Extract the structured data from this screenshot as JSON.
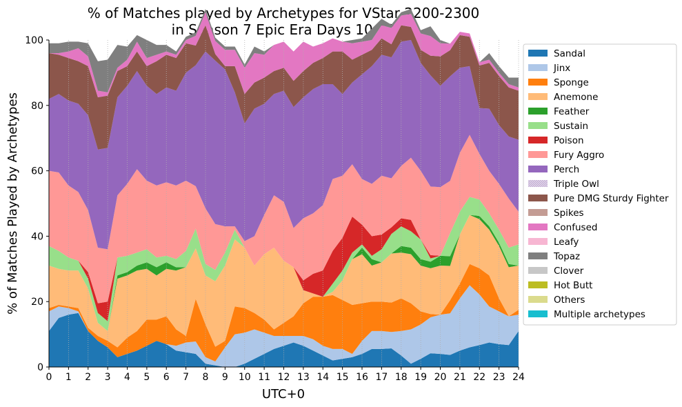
{
  "chart_data": {
    "type": "area",
    "stacked": true,
    "title_lines": [
      "% of Matches played by Archetypes for VStar 2200-2300",
      "in Season 7 Epic Era Days 10-12"
    ],
    "xlabel": "UTC+0",
    "ylabel": "% of Matches Played by Archetypes",
    "xlim": [
      0,
      24
    ],
    "ylim": [
      0,
      100
    ],
    "x_ticks": [
      "0",
      "1",
      "2",
      "3",
      "4",
      "5",
      "6",
      "7",
      "8",
      "9",
      "10",
      "11",
      "12",
      "13",
      "14",
      "15",
      "16",
      "17",
      "18",
      "19",
      "20",
      "21",
      "22",
      "23",
      "24"
    ],
    "y_ticks": [
      "0",
      "20",
      "40",
      "60",
      "80",
      "100"
    ],
    "grid": "vertical dotted",
    "legend_position": "outside right",
    "x": [
      0,
      0.5,
      1,
      1.5,
      2,
      2.5,
      3,
      3.5,
      4,
      4.5,
      5,
      5.5,
      6,
      6.5,
      7,
      7.5,
      8,
      8.5,
      9,
      9.5,
      10,
      10.5,
      11,
      11.5,
      12,
      12.5,
      13,
      13.5,
      14,
      14.5,
      15,
      15.5,
      16,
      16.5,
      17,
      17.5,
      18,
      18.5,
      19,
      19.5,
      20,
      20.5,
      21,
      21.5,
      22,
      22.5,
      23,
      23.5,
      24
    ],
    "series": [
      {
        "name": "Sandal",
        "color": "#1f77b4",
        "values": [
          11,
          15,
          16,
          16.5,
          11,
          8,
          6,
          3,
          4,
          5,
          6.5,
          8,
          7,
          5,
          4.5,
          4,
          1,
          0.5,
          0,
          0,
          1,
          2.5,
          4,
          5.5,
          6.5,
          7.5,
          6.5,
          5,
          3.5,
          2,
          2.5,
          3,
          4,
          5.5,
          5.5,
          5.7,
          3.5,
          1,
          2.5,
          4.2,
          4,
          3.7,
          5,
          6,
          6.7,
          7.5,
          7,
          6.7,
          11
        ]
      },
      {
        "name": "Jinx",
        "color": "#aec7e8",
        "values": [
          6,
          3.5,
          2,
          0.5,
          0,
          0,
          0,
          0,
          0,
          0,
          0,
          0,
          0,
          1.5,
          3,
          3.8,
          2,
          1.2,
          6,
          10,
          9.5,
          9,
          6.5,
          4,
          3,
          2,
          3,
          3.5,
          3,
          3.5,
          3,
          1,
          4,
          5.5,
          5.5,
          5,
          7.5,
          10.5,
          10.5,
          11,
          12,
          12.7,
          16,
          19,
          15.5,
          11,
          10,
          8.8,
          5
        ]
      },
      {
        "name": "Sponge",
        "color": "#ff7f0e",
        "values": [
          1,
          0.5,
          0.5,
          1,
          1,
          1.5,
          2,
          3,
          5,
          6,
          8,
          6.5,
          8.5,
          5,
          2,
          13,
          10,
          4.5,
          2,
          8.5,
          7.5,
          5,
          4,
          2,
          4,
          6,
          10,
          13,
          15,
          16.5,
          15,
          15,
          11.5,
          9,
          9,
          9,
          10,
          8,
          4,
          1,
          0,
          4,
          4.5,
          6.5,
          8,
          9.5,
          4,
          0,
          1.5
        ]
      },
      {
        "name": "Anemone",
        "color": "#ffbb78",
        "values": [
          13,
          11,
          11,
          11.5,
          12,
          4,
          3,
          21,
          19,
          18.5,
          15.5,
          13.5,
          14.5,
          18,
          21,
          15.5,
          15,
          20,
          23,
          20.5,
          18.5,
          14.5,
          20,
          25,
          19,
          15,
          4,
          1,
          0,
          1,
          6,
          14,
          15,
          11,
          12,
          15,
          14,
          15,
          14,
          14,
          15,
          10.5,
          15,
          15,
          15,
          14,
          16,
          15,
          13.5
        ]
      },
      {
        "name": "Feather",
        "color": "#2ca02c",
        "values": [
          0,
          0,
          0,
          0,
          0,
          0,
          0,
          1,
          1,
          1.5,
          2,
          2.5,
          2,
          1,
          0,
          0,
          0,
          0,
          0,
          0,
          0,
          0,
          0,
          0,
          0,
          0,
          0,
          0,
          0,
          0,
          0,
          0,
          2,
          2,
          0,
          0,
          2,
          2,
          2,
          2,
          3,
          3,
          0,
          0,
          1,
          1,
          1,
          1,
          0
        ]
      },
      {
        "name": "Sustain",
        "color": "#98df8a",
        "values": [
          6,
          5.5,
          4,
          3,
          3,
          3,
          3,
          5.5,
          5,
          4,
          4,
          3,
          2,
          2.5,
          5,
          6,
          3.5,
          3.5,
          4,
          3,
          0,
          0,
          0,
          0,
          0,
          0,
          0,
          0,
          0,
          2.5,
          3,
          2,
          1,
          1,
          4,
          6,
          6,
          5,
          6,
          1,
          0,
          7,
          7,
          5.5,
          5,
          4,
          4,
          5,
          6.5
        ]
      },
      {
        "name": "Poison",
        "color": "#d62728",
        "values": [
          0,
          0,
          0,
          0,
          2,
          3,
          6,
          0,
          0,
          0,
          0,
          0,
          0,
          0,
          0,
          0,
          0,
          0,
          0,
          0,
          0,
          0,
          0,
          0,
          0,
          0,
          3,
          6,
          8,
          10,
          10,
          11,
          6,
          6,
          4.5,
          2,
          2.5,
          3.5,
          0,
          1,
          0,
          0,
          0,
          0,
          0,
          0,
          0,
          0,
          0
        ]
      },
      {
        "name": "Fury Aggro",
        "color": "#ff9896",
        "values": [
          23,
          24,
          22,
          21,
          19,
          17,
          16,
          19,
          22,
          25.5,
          21,
          22,
          22.5,
          22.5,
          21.5,
          13,
          17,
          14,
          8,
          1,
          2,
          9,
          12,
          16,
          18,
          12,
          19,
          18.5,
          20,
          22,
          19,
          16,
          14,
          16,
          18,
          15,
          16,
          19,
          21,
          21,
          21,
          16,
          18,
          19,
          14,
          13,
          14,
          15,
          10
        ]
      },
      {
        "name": "Perch",
        "color": "#9467bd",
        "values": [
          22,
          24,
          26,
          27,
          29,
          30,
          31,
          30,
          30,
          30,
          29,
          28,
          29,
          29,
          33,
          37,
          48,
          50,
          48,
          41,
          36,
          39,
          34,
          31,
          34,
          37,
          37,
          38,
          37,
          29,
          25,
          25,
          32,
          36,
          37,
          37,
          38,
          36,
          33,
          34,
          31,
          32,
          26,
          21,
          14,
          19,
          18,
          19,
          22
        ]
      },
      {
        "name": "Triple Owl",
        "color": "#c5b0d5",
        "pattern": true,
        "values": [
          0,
          0,
          0,
          0,
          0,
          0,
          0,
          0,
          0,
          0,
          0,
          0,
          0,
          0,
          0,
          0,
          0,
          0,
          0,
          0,
          0,
          0,
          0,
          0,
          0,
          0,
          0,
          0,
          0,
          0,
          0,
          0,
          0,
          0,
          0,
          0,
          0,
          0,
          0,
          0,
          0,
          0,
          0,
          0,
          0,
          0,
          0,
          0,
          0
        ]
      },
      {
        "name": "Pure DMG Sturdy Fighter",
        "color": "#8c564b",
        "values": [
          14,
          12,
          13,
          13,
          15,
          16,
          16,
          8,
          6,
          6,
          6,
          10,
          10,
          10,
          9,
          6,
          8,
          2,
          1,
          8,
          9,
          8,
          8,
          7,
          7,
          8,
          8,
          8,
          8,
          10,
          13,
          7,
          6,
          5,
          5,
          4,
          5,
          4,
          4,
          6,
          9,
          8,
          10,
          9,
          13,
          14,
          15,
          15,
          15
        ]
      },
      {
        "name": "Spikes",
        "color": "#c49c94",
        "values": [
          0,
          0,
          0,
          0,
          0,
          0,
          0,
          0,
          0,
          0,
          0,
          0,
          0,
          0,
          0,
          0,
          0,
          0,
          0,
          0,
          0,
          0,
          0,
          0,
          0,
          0,
          0,
          0,
          0,
          0,
          0,
          0,
          0,
          0,
          0,
          0,
          0,
          0,
          0,
          0,
          0,
          0,
          0,
          0,
          0,
          0,
          0,
          0,
          0
        ]
      },
      {
        "name": "Confused",
        "color": "#e377c2",
        "values": [
          0,
          0.5,
          2,
          4,
          3,
          2,
          1,
          1,
          2,
          3,
          2.5,
          2,
          1,
          1,
          1,
          3,
          4,
          4,
          5,
          5,
          8,
          9,
          7,
          8,
          8,
          9,
          9,
          5,
          4.5,
          4,
          3,
          5,
          4,
          3,
          4,
          5,
          3,
          4,
          5,
          6,
          4,
          2,
          1,
          1,
          1,
          1,
          1,
          1,
          1
        ]
      },
      {
        "name": "Leafy",
        "color": "#f7b6d2",
        "values": [
          0,
          0,
          0,
          0,
          0,
          0,
          0,
          0,
          0,
          0,
          0,
          0,
          0,
          0,
          0,
          0,
          0,
          0,
          0,
          0,
          0,
          0,
          0,
          0,
          0,
          0,
          0,
          0,
          0,
          0,
          0,
          0,
          0,
          0,
          0,
          0,
          0,
          0,
          0,
          0,
          0,
          0,
          0,
          0,
          0,
          0,
          0,
          0,
          0
        ]
      },
      {
        "name": "Topaz",
        "color": "#7f7f7f",
        "values": [
          3,
          3,
          3,
          2,
          4,
          9,
          10,
          7,
          4,
          2,
          5.5,
          3,
          2,
          1,
          1,
          1,
          1,
          1,
          1,
          1,
          1,
          2,
          1,
          0,
          0,
          0,
          0,
          0,
          0,
          0,
          0,
          1,
          1,
          3.5,
          2,
          1,
          1,
          1.5,
          1,
          3,
          1,
          0,
          0,
          0,
          0,
          2,
          2,
          2,
          3
        ]
      },
      {
        "name": "Clover",
        "color": "#c7c7c7",
        "values": [
          0,
          0,
          0,
          0,
          0,
          0,
          0,
          0,
          0,
          0,
          0,
          0,
          0,
          0,
          0,
          0,
          0,
          0,
          0,
          0,
          0,
          0,
          0,
          0,
          0,
          0,
          0,
          0,
          0,
          0,
          0,
          0,
          0,
          0,
          0,
          0,
          0,
          0,
          0,
          0,
          0,
          0,
          0,
          0,
          0,
          0,
          0,
          0,
          0
        ]
      },
      {
        "name": "Hot Butt",
        "color": "#bcbd22",
        "values": [
          0,
          0,
          0,
          0,
          0,
          0,
          0,
          0,
          0,
          0,
          0,
          0,
          0,
          0,
          0,
          0,
          0,
          0,
          0,
          0,
          0,
          0,
          0,
          0,
          0,
          0,
          0,
          0,
          0,
          0,
          0,
          0,
          0,
          0,
          0,
          0,
          0,
          0,
          0,
          0,
          0,
          0,
          0,
          0,
          0,
          0,
          0,
          0,
          0
        ]
      },
      {
        "name": "Others",
        "color": "#dbdb8d",
        "values": [
          0,
          0,
          0,
          0,
          0,
          0,
          0,
          0,
          0,
          0,
          0,
          0,
          0,
          0,
          0,
          0,
          0,
          0,
          0,
          0,
          0,
          0,
          0,
          0,
          0,
          0,
          0,
          0,
          0,
          0,
          0,
          0,
          0,
          0,
          0,
          0,
          0,
          0,
          0,
          0,
          0,
          0,
          0,
          0,
          0,
          0,
          0,
          0,
          0
        ]
      },
      {
        "name": "Multiple archetypes",
        "color": "#17becf",
        "values": [
          0,
          0,
          0,
          0,
          0,
          0,
          0,
          0,
          0,
          0,
          0,
          0,
          0,
          0,
          0,
          0,
          0,
          0,
          0,
          0,
          0,
          0,
          0,
          0,
          0,
          0,
          0,
          0,
          0,
          0,
          0,
          0,
          0,
          0,
          0,
          0,
          0,
          0,
          0,
          0,
          0,
          0,
          0,
          0,
          0,
          0,
          0,
          0,
          0
        ]
      }
    ]
  }
}
